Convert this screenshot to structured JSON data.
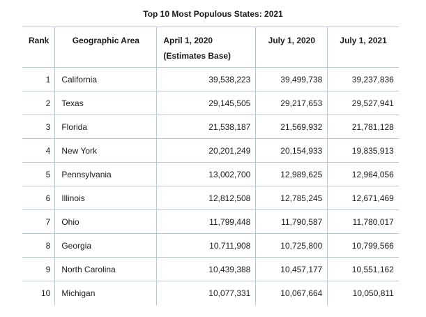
{
  "title": "Top 10 Most Populous States: 2021",
  "headers": {
    "rank": "Rank",
    "area": "Geographic Area",
    "base_line1": "April 1, 2020",
    "base_line2": "(Estimates Base)",
    "jul2020": "July 1, 2020",
    "jul2021": "July 1, 2021"
  },
  "rows": [
    {
      "rank": "1",
      "area": "California",
      "base": "39,538,223",
      "jul2020": "39,499,738",
      "jul2021": "39,237,836"
    },
    {
      "rank": "2",
      "area": "Texas",
      "base": "29,145,505",
      "jul2020": "29,217,653",
      "jul2021": "29,527,941"
    },
    {
      "rank": "3",
      "area": "Florida",
      "base": "21,538,187",
      "jul2020": "21,569,932",
      "jul2021": "21,781,128"
    },
    {
      "rank": "4",
      "area": "New York",
      "base": "20,201,249",
      "jul2020": "20,154,933",
      "jul2021": "19,835,913"
    },
    {
      "rank": "5",
      "area": "Pennsylvania",
      "base": "13,002,700",
      "jul2020": "12,989,625",
      "jul2021": "12,964,056"
    },
    {
      "rank": "6",
      "area": "Illinois",
      "base": "12,812,508",
      "jul2020": "12,785,245",
      "jul2021": "12,671,469"
    },
    {
      "rank": "7",
      "area": "Ohio",
      "base": "11,799,448",
      "jul2020": "11,790,587",
      "jul2021": "11,780,017"
    },
    {
      "rank": "8",
      "area": "Georgia",
      "base": "10,711,908",
      "jul2020": "10,725,800",
      "jul2021": "10,799,566"
    },
    {
      "rank": "9",
      "area": "North Carolina",
      "base": "10,439,388",
      "jul2020": "10,457,177",
      "jul2021": "10,551,162"
    },
    {
      "rank": "10",
      "area": "Michigan",
      "base": "10,077,331",
      "jul2020": "10,067,664",
      "jul2021": "10,050,811"
    }
  ],
  "colors": {
    "border": "#b9cad4",
    "text": "#1a1a1a",
    "background": "#ffffff"
  }
}
